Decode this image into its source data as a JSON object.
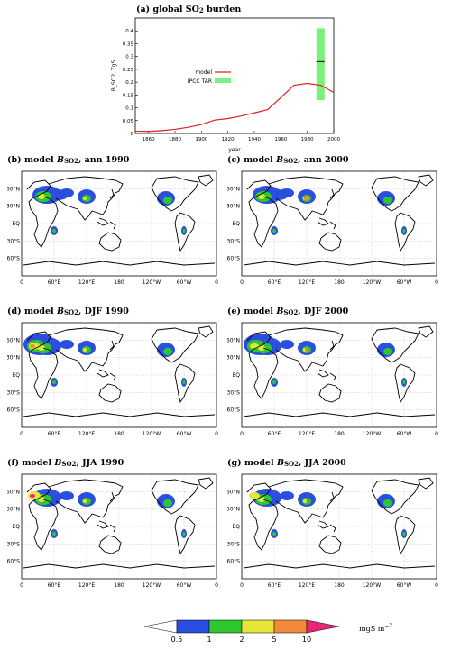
{
  "top_chart": {
    "title_prefix": "(a) global SO",
    "title_sub": "2",
    "title_suffix": " burden",
    "ylabel": "B_SO2, TgS",
    "xlabel": "year",
    "legend_model": "model",
    "legend_ipcc": "IPCC TAR",
    "colors": {
      "model": "#e0201b",
      "ipcc": "#7cf07c",
      "ipcc_mean": "#000000"
    }
  },
  "chart_data": {
    "type": "line",
    "title": "global SO2 burden",
    "xlabel": "year",
    "ylabel": "B_SO2, TgS",
    "xlim": [
      1850,
      2000
    ],
    "ylim": [
      0,
      0.45
    ],
    "xticks": [
      1860,
      1880,
      1900,
      1920,
      1940,
      1960,
      1980,
      2000
    ],
    "yticks": [
      0,
      0.05,
      0.1,
      0.15,
      0.2,
      0.25,
      0.3,
      0.35,
      0.4
    ],
    "legend_position": "center-right",
    "series": [
      {
        "name": "model",
        "x": [
          1850,
          1860,
          1870,
          1880,
          1890,
          1900,
          1910,
          1920,
          1930,
          1940,
          1950,
          1960,
          1970,
          1980,
          1990,
          2000
        ],
        "y": [
          0.009,
          0.008,
          0.011,
          0.016,
          0.024,
          0.035,
          0.052,
          0.058,
          0.068,
          0.08,
          0.093,
          0.14,
          0.188,
          0.195,
          0.188,
          0.16
        ]
      }
    ],
    "ipcc_tar": {
      "name": "IPCC TAR",
      "x": 1990,
      "low": 0.13,
      "high": 0.41,
      "mean": 0.28
    }
  },
  "maps": [
    {
      "label": "(b) model ",
      "var": "B",
      "sub": "SO2",
      "period": ", ann 1990",
      "key": "ann1990"
    },
    {
      "label": "(c) model ",
      "var": "B",
      "sub": "SO2",
      "period": ", ann 2000",
      "key": "ann2000"
    },
    {
      "label": "(d) model ",
      "var": "B",
      "sub": "SO2",
      "period": ", DJF 1990",
      "key": "djf1990"
    },
    {
      "label": "(e) model ",
      "var": "B",
      "sub": "SO2",
      "period": ", DJF 2000",
      "key": "djf2000"
    },
    {
      "label": "(f) model ",
      "var": "B",
      "sub": "SO2",
      "period": ", JJA 1990",
      "key": "jja1990"
    },
    {
      "label": "(g) model ",
      "var": "B",
      "sub": "SO2",
      "period": ", JJA 2000",
      "key": "jja2000"
    }
  ],
  "map_axes": {
    "lon_ticks": [
      "0",
      "60°E",
      "120°E",
      "180",
      "120°W",
      "60°W",
      "0"
    ],
    "lat_ticks": [
      "60°N",
      "30°N",
      "EQ",
      "30°S",
      "60°S"
    ]
  },
  "colorbar": {
    "ticks": [
      "0.5",
      "1",
      "2",
      "5",
      "10"
    ],
    "unit": "mgS m",
    "unit_sup": "−2",
    "colors": [
      "#ffffff",
      "#2a4fe0",
      "#2ec82e",
      "#e6e63a",
      "#f08a3a",
      "#e8257a"
    ]
  }
}
